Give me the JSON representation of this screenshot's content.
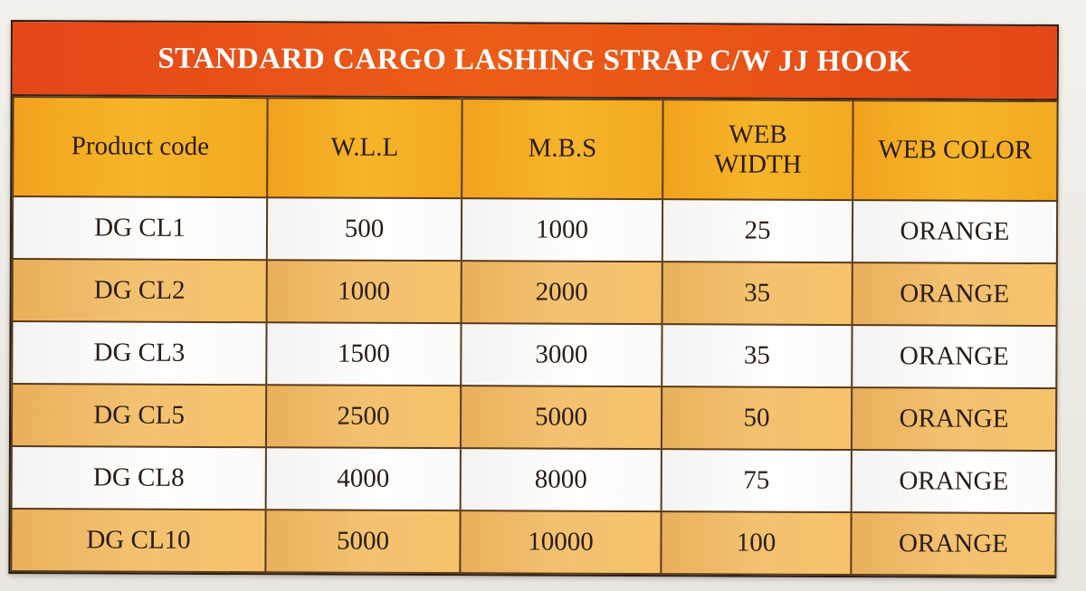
{
  "title": "STANDARD CARGO LASHING STRAP C/W JJ HOOK",
  "columns": [
    {
      "lines": [
        "Product code"
      ]
    },
    {
      "lines": [
        "W.L.L"
      ]
    },
    {
      "lines": [
        "M.B.S"
      ]
    },
    {
      "lines": [
        "WEB",
        "WIDTH"
      ]
    },
    {
      "lines": [
        "WEB COLOR"
      ]
    }
  ],
  "rows": [
    {
      "product_code": "DG CL1",
      "wll": "500",
      "mbs": "1000",
      "web_width": "25",
      "web_color": "ORANGE"
    },
    {
      "product_code": "DG CL2",
      "wll": "1000",
      "mbs": "2000",
      "web_width": "35",
      "web_color": "ORANGE"
    },
    {
      "product_code": "DG CL3",
      "wll": "1500",
      "mbs": "3000",
      "web_width": "35",
      "web_color": "ORANGE"
    },
    {
      "product_code": "DG CL5",
      "wll": "2500",
      "mbs": "5000",
      "web_width": "50",
      "web_color": "ORANGE"
    },
    {
      "product_code": "DG CL8",
      "wll": "4000",
      "mbs": "8000",
      "web_width": "75",
      "web_color": "ORANGE"
    },
    {
      "product_code": "DG CL10",
      "wll": "5000",
      "mbs": "10000",
      "web_width": "100",
      "web_color": "ORANGE"
    }
  ],
  "colors": {
    "title_bar": "#e9521a",
    "header_row": "#f4ad24",
    "band_orange": "#f1bd69",
    "band_white": "#ffffff"
  }
}
